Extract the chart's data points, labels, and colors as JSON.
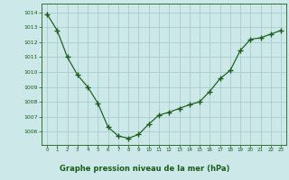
{
  "x": [
    0,
    1,
    2,
    3,
    4,
    5,
    6,
    7,
    8,
    9,
    10,
    11,
    12,
    13,
    14,
    15,
    16,
    17,
    18,
    19,
    20,
    21,
    22,
    23
  ],
  "y": [
    1013.9,
    1012.8,
    1011.0,
    1009.8,
    1009.0,
    1007.9,
    1006.3,
    1005.7,
    1005.55,
    1005.8,
    1006.5,
    1007.1,
    1007.3,
    1007.55,
    1007.8,
    1008.0,
    1008.7,
    1009.55,
    1010.1,
    1011.45,
    1012.2,
    1012.3,
    1012.55,
    1012.8
  ],
  "line_color": "#1a5c1a",
  "marker": "+",
  "marker_size": 4,
  "bg_color": "#cce8e8",
  "grid_color": "#a0c8c8",
  "xlabel": "Graphe pression niveau de la mer (hPa)",
  "xlabel_color": "#1a5c1a",
  "tick_color": "#1a5c1a",
  "ylabel_ticks": [
    1006,
    1007,
    1008,
    1009,
    1010,
    1011,
    1012,
    1013,
    1014
  ],
  "xlim": [
    -0.5,
    23.5
  ],
  "ylim": [
    1005.1,
    1014.6
  ]
}
